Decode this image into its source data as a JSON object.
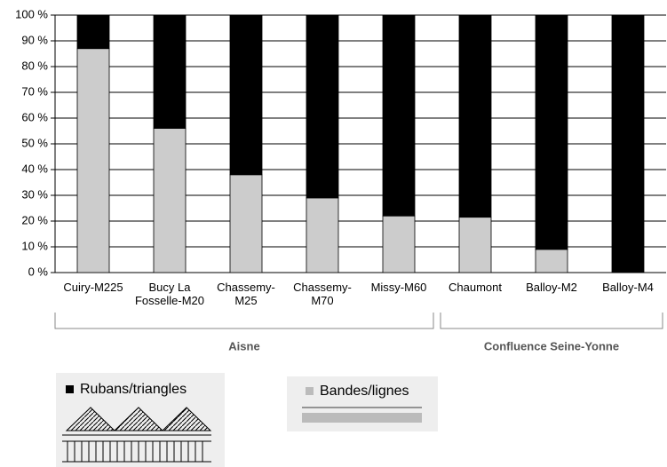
{
  "chart_data": {
    "type": "bar",
    "stacked": true,
    "categories": [
      "Cuiry-M225",
      "Bucy La Fosselle-M20",
      "Chassemy-M25",
      "Chassemy-M70",
      "Missy-M60",
      "Chaumont",
      "Balloy-M2",
      "Balloy-M4"
    ],
    "series": [
      {
        "name": "Bandes/lignes",
        "color": "#cccccc",
        "values": [
          87,
          56,
          38,
          29,
          22,
          21.5,
          9,
          0
        ]
      },
      {
        "name": "Rubans/triangles",
        "color": "#000000",
        "values": [
          13,
          44,
          62,
          71,
          78,
          78.5,
          91,
          100
        ]
      }
    ],
    "groups": [
      {
        "label": "Aisne",
        "span": [
          0,
          4
        ]
      },
      {
        "label": "Confluence Seine-Yonne",
        "span": [
          5,
          7
        ]
      }
    ],
    "ylim": [
      0,
      100
    ],
    "yticks": [
      {
        "value": 0,
        "label": "0 %"
      },
      {
        "value": 10,
        "label": "10 %"
      },
      {
        "value": 20,
        "label": "20 %"
      },
      {
        "value": 30,
        "label": "30 %"
      },
      {
        "value": 40,
        "label": "40 %"
      },
      {
        "value": 50,
        "label": "50 %"
      },
      {
        "value": 60,
        "label": "60 %"
      },
      {
        "value": 70,
        "label": "70 %"
      },
      {
        "value": 80,
        "label": "80 %"
      },
      {
        "value": 90,
        "label": "90 %"
      },
      {
        "value": 100,
        "label": "100 %"
      }
    ],
    "grid": true
  }
}
